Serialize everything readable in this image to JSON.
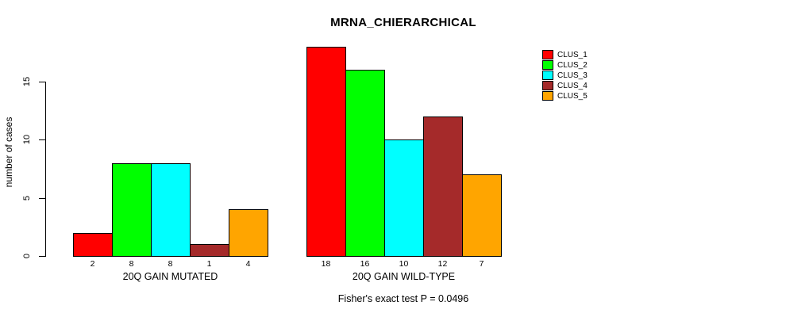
{
  "chart_data": {
    "type": "bar",
    "title": "MRNA_CHIERARCHICAL",
    "ylabel": "number of cases",
    "xlabel": "",
    "categories": [
      "20Q GAIN MUTATED",
      "20Q GAIN WILD-TYPE"
    ],
    "series": [
      {
        "name": "CLUS_1",
        "color": "#FF0000",
        "values": [
          2,
          18
        ]
      },
      {
        "name": "CLUS_2",
        "color": "#00FF00",
        "values": [
          8,
          16
        ]
      },
      {
        "name": "CLUS_3",
        "color": "#00FFFF",
        "values": [
          8,
          10
        ]
      },
      {
        "name": "CLUS_4",
        "color": "#A52A2A",
        "values": [
          1,
          12
        ]
      },
      {
        "name": "CLUS_5",
        "color": "#FFA500",
        "values": [
          4,
          7
        ]
      }
    ],
    "bar_value_labels": [
      [
        2,
        8,
        8,
        1,
        4
      ],
      [
        18,
        16,
        10,
        12,
        7
      ]
    ],
    "ylim": [
      0,
      18
    ],
    "yticks": [
      0,
      5,
      10,
      15
    ],
    "grid": false,
    "legend_position": "right",
    "annotation": "Fisher's exact test P = 0.0496"
  }
}
